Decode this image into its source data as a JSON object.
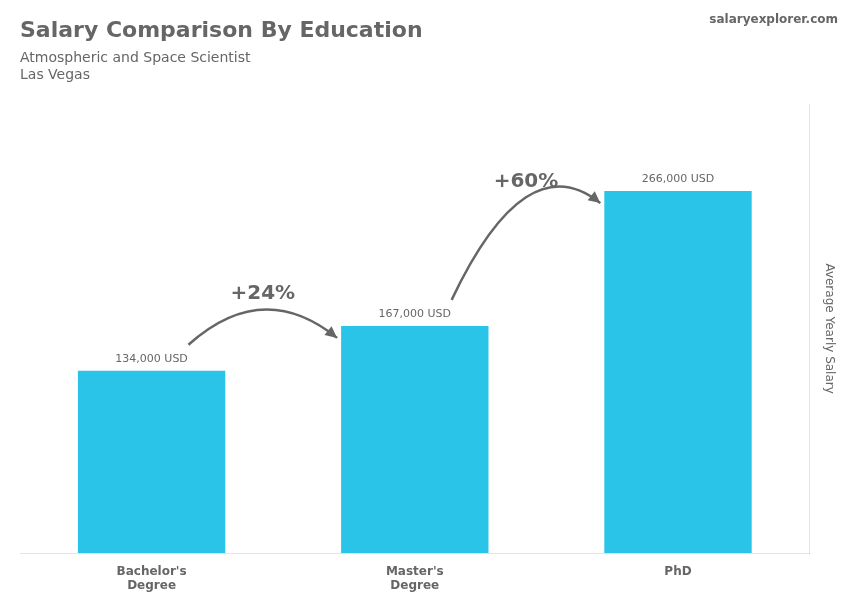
{
  "chart_data": {
    "type": "bar",
    "title": "Salary Comparison By Education",
    "subtitle": [
      "Atmospheric and Space Scientist",
      "Las Vegas"
    ],
    "brand": "salaryexplorer.com",
    "ylabel": "Average Yearly Salary",
    "categories": [
      "Bachelor's\nDegree",
      "Master's\nDegree",
      "PhD"
    ],
    "values": [
      134000,
      167000,
      266000
    ],
    "value_labels": [
      "134,000 USD",
      "167,000 USD",
      "266,000 USD"
    ],
    "data_labels": true,
    "annotations": [
      "+24%",
      "+60%"
    ],
    "color": "#29C4E8",
    "ylim": [
      0,
      330000
    ],
    "tick_labels": "x",
    "grid": false
  }
}
